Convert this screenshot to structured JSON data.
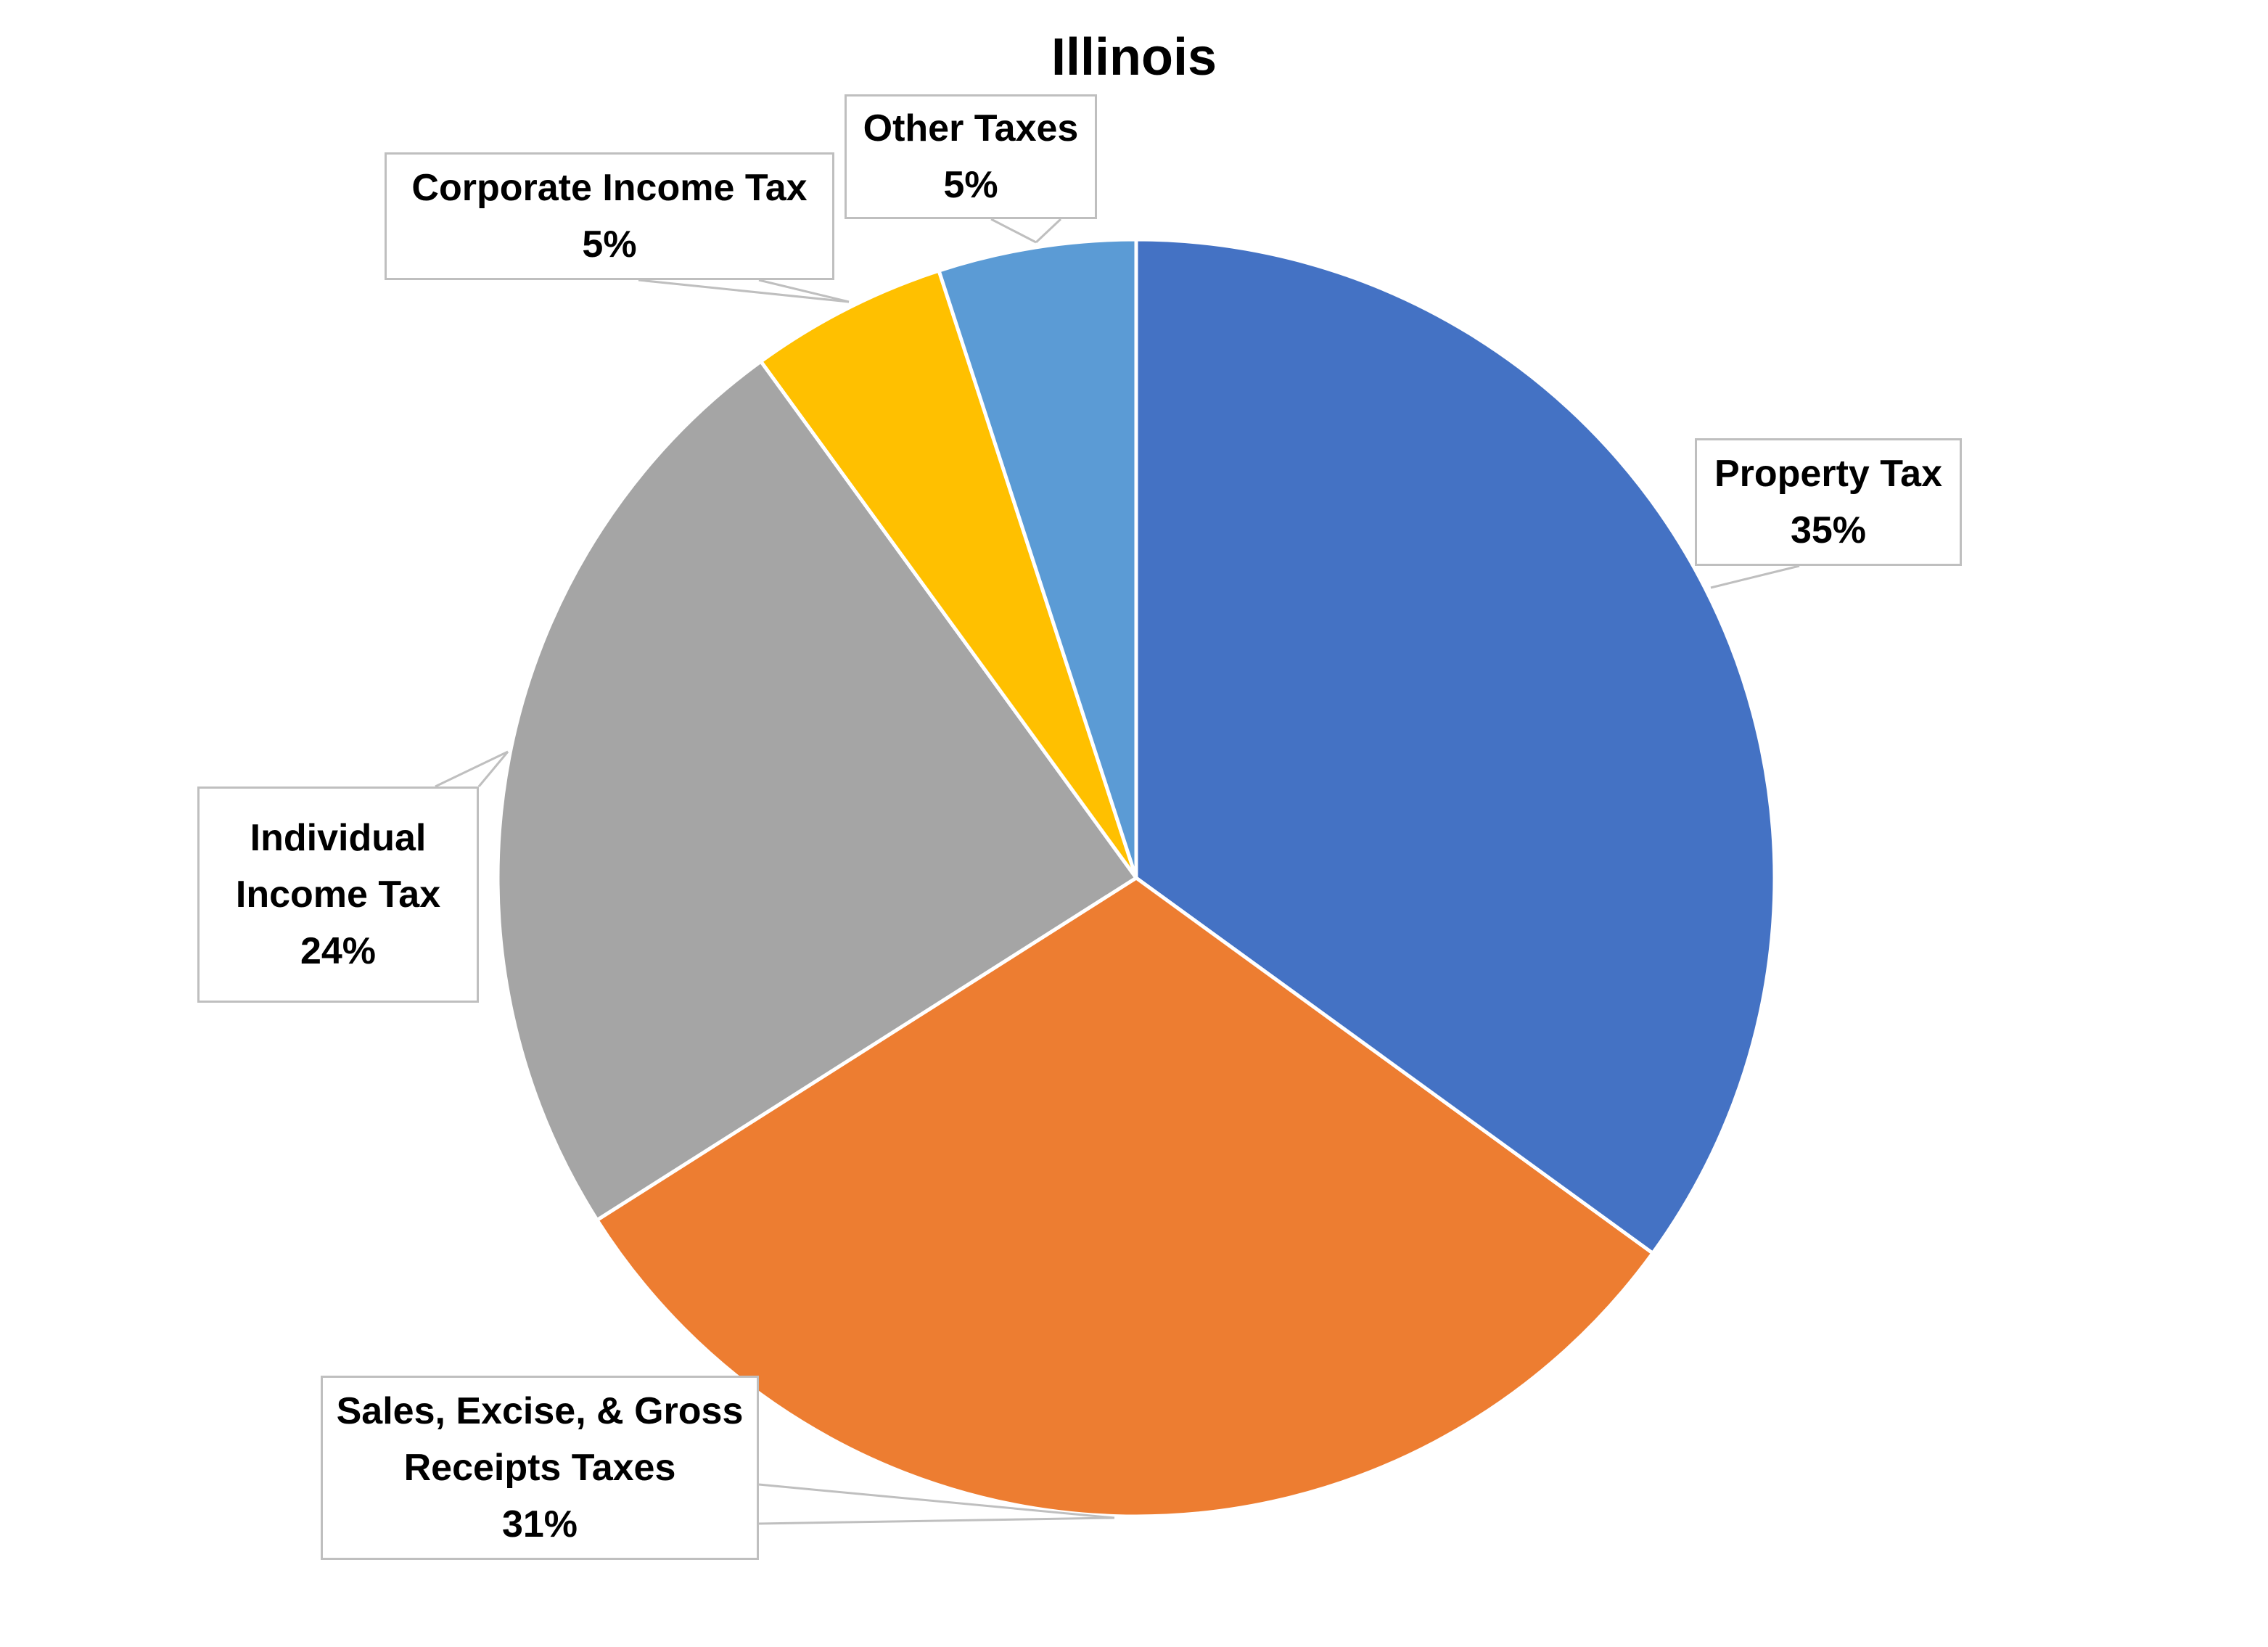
{
  "chart_data": {
    "type": "pie",
    "title": "Illinois",
    "slices": [
      {
        "label": "Property Tax",
        "value": 35,
        "value_label": "35%",
        "color": "#4472C4"
      },
      {
        "label": "Sales, Excise, & Gross Receipts Taxes",
        "value": 31,
        "value_label": "31%",
        "color": "#ED7D31"
      },
      {
        "label": "Individual Income Tax",
        "value": 24,
        "value_label": "24%",
        "color": "#A5A5A5"
      },
      {
        "label": "Corporate Income Tax",
        "value": 5,
        "value_label": "5%",
        "color": "#FFC000"
      },
      {
        "label": "Other Taxes",
        "value": 5,
        "value_label": "5%",
        "color": "#5B9BD5"
      }
    ],
    "label_lines": {
      "property": [
        "Property Tax"
      ],
      "sales": [
        "Sales, Excise, & Gross",
        "Receipts Taxes"
      ],
      "individual": [
        "Individual",
        "Income Tax"
      ],
      "corporate": [
        "Corporate Income Tax"
      ],
      "other": [
        "Other Taxes"
      ]
    },
    "legend": "none",
    "start_angle": "12 o'clock, clockwise"
  }
}
